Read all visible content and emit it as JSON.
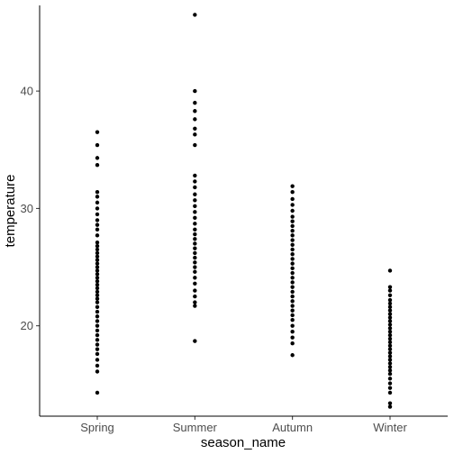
{
  "chart_data": {
    "type": "scatter",
    "xlabel": "season_name",
    "ylabel": "temperature",
    "categories": [
      "Spring",
      "Summer",
      "Autumn",
      "Winter"
    ],
    "ylim": [
      12.3,
      47.3
    ],
    "yticks": [
      20,
      30,
      40
    ],
    "grid": false,
    "point_color": "#000000",
    "series": [
      {
        "category": "Spring",
        "values": [
          36.5,
          35.4,
          34.3,
          33.7,
          31.4,
          31.0,
          30.5,
          30.0,
          29.5,
          29.0,
          28.6,
          28.2,
          27.7,
          27.1,
          26.8,
          26.5,
          26.2,
          25.9,
          25.6,
          25.3,
          25.0,
          24.7,
          24.4,
          24.1,
          23.8,
          23.5,
          23.2,
          22.9,
          22.6,
          22.3,
          22.0,
          21.6,
          21.2,
          20.8,
          20.4,
          20.0,
          19.6,
          19.2,
          18.8,
          18.4,
          18.0,
          17.6,
          17.1,
          16.6,
          16.1,
          14.3
        ]
      },
      {
        "category": "Summer",
        "values": [
          46.5,
          40.0,
          39.0,
          38.3,
          37.6,
          36.8,
          36.3,
          35.4,
          32.8,
          32.3,
          31.8,
          31.2,
          30.7,
          30.2,
          29.7,
          29.2,
          28.7,
          28.2,
          27.8,
          27.4,
          27.0,
          26.6,
          26.2,
          25.8,
          25.4,
          25.0,
          24.6,
          24.1,
          23.6,
          23.0,
          22.5,
          22.0,
          21.7,
          18.7
        ]
      },
      {
        "category": "Autumn",
        "values": [
          31.9,
          31.4,
          30.8,
          30.3,
          29.8,
          29.3,
          28.9,
          28.5,
          28.1,
          27.7,
          27.3,
          26.9,
          26.5,
          26.1,
          25.7,
          25.3,
          24.9,
          24.5,
          24.1,
          23.7,
          23.3,
          22.9,
          22.5,
          22.1,
          21.7,
          21.3,
          20.9,
          20.5,
          20.0,
          19.5,
          19.0,
          18.5,
          17.5
        ]
      },
      {
        "category": "Winter",
        "values": [
          24.7,
          23.3,
          23.0,
          22.6,
          22.2,
          21.9,
          21.6,
          21.3,
          21.0,
          20.7,
          20.4,
          20.1,
          19.8,
          19.5,
          19.2,
          18.9,
          18.6,
          18.3,
          18.0,
          17.7,
          17.4,
          17.1,
          16.8,
          16.5,
          16.2,
          15.9,
          15.5,
          15.1,
          14.7,
          14.3,
          13.4,
          13.1
        ]
      }
    ]
  }
}
